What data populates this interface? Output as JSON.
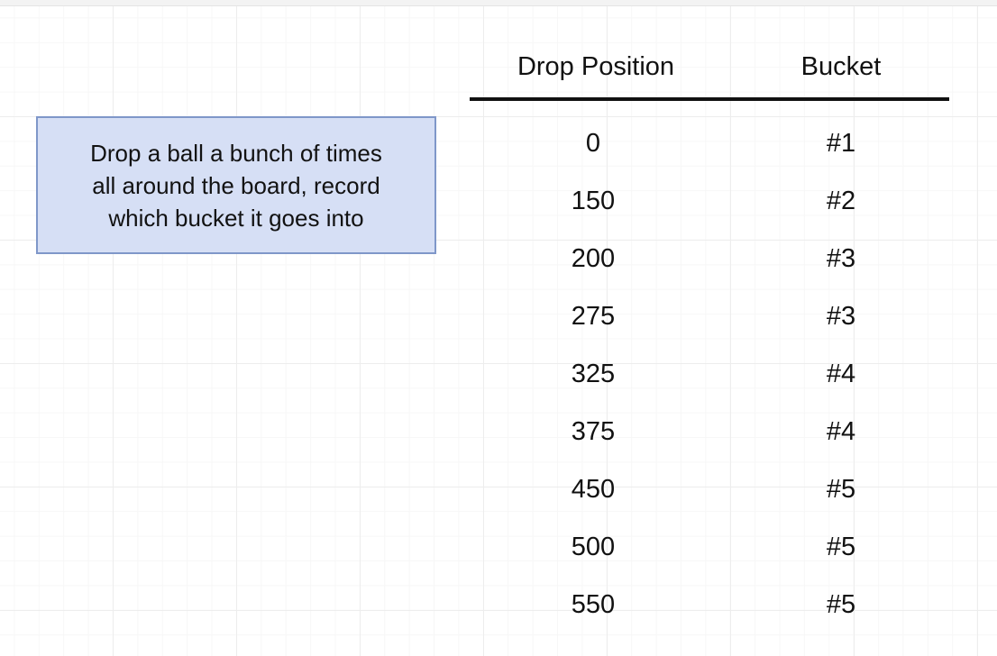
{
  "note": {
    "text": "Drop a ball a bunch of times\nall around the board, record\nwhich bucket it goes into"
  },
  "table": {
    "headers": {
      "position": "Drop Position",
      "bucket": "Bucket"
    },
    "rows": [
      {
        "position": "0",
        "bucket": "#1"
      },
      {
        "position": "150",
        "bucket": "#2"
      },
      {
        "position": "200",
        "bucket": "#3"
      },
      {
        "position": "275",
        "bucket": "#3"
      },
      {
        "position": "325",
        "bucket": "#4"
      },
      {
        "position": "375",
        "bucket": "#4"
      },
      {
        "position": "450",
        "bucket": "#5"
      },
      {
        "position": "500",
        "bucket": "#5"
      },
      {
        "position": "550",
        "bucket": "#5"
      }
    ]
  },
  "colors": {
    "note_fill": "#d6dff5",
    "note_border": "#7f97c9",
    "rule": "#111111"
  }
}
